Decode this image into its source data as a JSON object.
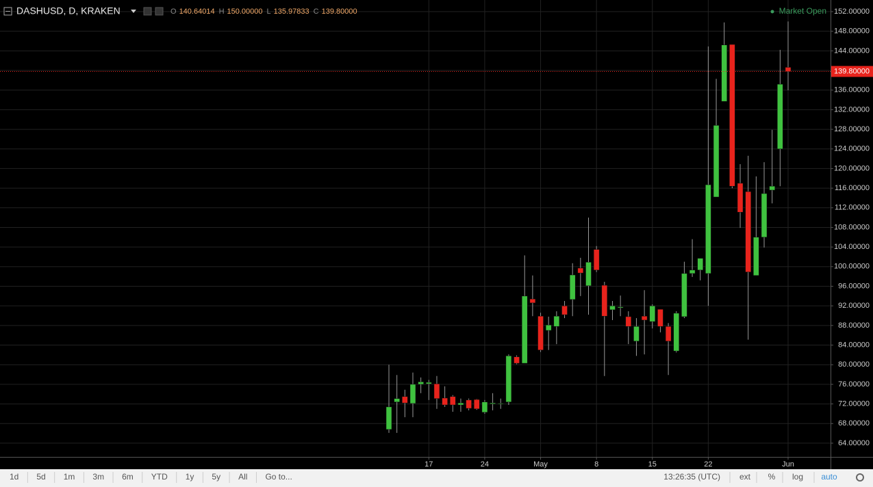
{
  "header": {
    "symbol": "DASHUSD, D, KRAKEN",
    "ohlc": [
      {
        "key": "O",
        "value": "140.64014"
      },
      {
        "key": "H",
        "value": "150.00000"
      },
      {
        "key": "L",
        "value": "135.97833"
      },
      {
        "key": "C",
        "value": "139.80000"
      }
    ],
    "status": "Market Open"
  },
  "toolbar": {
    "ranges": [
      "1d",
      "5d",
      "1m",
      "3m",
      "6m",
      "YTD",
      "1y",
      "5y",
      "All"
    ],
    "goto": "Go to...",
    "time": "13:26:35 (UTC)",
    "options": [
      "ext",
      "%",
      "log",
      "auto"
    ]
  },
  "chart_data": {
    "type": "candlestick",
    "categories": [
      null,
      null,
      null,
      null,
      null,
      "17",
      null,
      null,
      null,
      null,
      null,
      null,
      "24",
      null,
      null,
      null,
      null,
      null,
      null,
      "May",
      null,
      null,
      null,
      null,
      null,
      null,
      "8",
      null,
      null,
      null,
      null,
      null,
      null,
      "15",
      null,
      null,
      null,
      null,
      null,
      null,
      "22",
      null,
      null,
      null,
      null,
      null,
      null,
      null,
      null,
      null,
      "Jun"
    ],
    "open": [
      66.8,
      72.4,
      73.5,
      72.1,
      76.0,
      76.1,
      76.1,
      73.2,
      73.5,
      71.8,
      72.8,
      72.9,
      70.3,
      72.0,
      72.0,
      72.4,
      81.6,
      80.3,
      93.4,
      89.9,
      87.0,
      87.8,
      92.0,
      93.3,
      99.7,
      96.1,
      103.5,
      96.2,
      91.2,
      91.6,
      89.8,
      84.8,
      89.9,
      88.8,
      91.3,
      87.8,
      82.8,
      89.8,
      98.6,
      99.3,
      98.6,
      114.2,
      133.7,
      145.3,
      117.0,
      115.3,
      98.2,
      106.0,
      115.6,
      124.0,
      140.64014
    ],
    "high": [
      80.0,
      77.9,
      74.9,
      78.4,
      77.4,
      76.9,
      77.7,
      75.6,
      73.8,
      73.1,
      73.1,
      73.0,
      72.8,
      74.2,
      73.1,
      82.1,
      81.9,
      102.3,
      98.2,
      90.6,
      89.8,
      90.9,
      93.0,
      100.7,
      101.8,
      110.0,
      104.2,
      96.9,
      93.0,
      94.1,
      90.9,
      89.5,
      95.2,
      92.3,
      91.3,
      88.5,
      90.9,
      101.0,
      105.6,
      101.7,
      144.9,
      138.3,
      149.8,
      145.3,
      120.9,
      122.6,
      118.4,
      121.3,
      127.9,
      144.2,
      150.0
    ],
    "low": [
      66.1,
      66.1,
      69.3,
      69.3,
      74.2,
      72.8,
      71.0,
      71.4,
      70.4,
      70.4,
      70.7,
      70.8,
      70.0,
      70.7,
      71.0,
      71.8,
      80.1,
      80.3,
      89.9,
      82.6,
      83.0,
      84.2,
      89.5,
      89.9,
      94.0,
      90.2,
      98.9,
      77.7,
      89.1,
      89.9,
      84.2,
      81.8,
      82.1,
      87.4,
      86.6,
      77.9,
      82.5,
      89.5,
      97.9,
      97.2,
      92.0,
      114.2,
      133.7,
      116.0,
      107.9,
      85.1,
      98.2,
      103.9,
      112.9,
      116.4,
      135.97833
    ],
    "close": [
      71.4,
      73.1,
      72.2,
      76.0,
      76.5,
      76.4,
      73.1,
      71.8,
      71.8,
      72.2,
      71.1,
      71.0,
      72.4,
      72.2,
      72.1,
      81.8,
      80.3,
      94.0,
      92.6,
      83.0,
      88.1,
      89.9,
      90.2,
      98.3,
      98.7,
      100.9,
      99.3,
      89.9,
      92.0,
      91.8,
      87.8,
      87.8,
      89.1,
      92.0,
      87.8,
      84.8,
      90.5,
      98.6,
      99.3,
      101.7,
      116.7,
      128.8,
      145.2,
      116.4,
      111.1,
      98.9,
      106.0,
      114.9,
      116.4,
      137.2,
      139.8
    ],
    "up_color": "#3fc23f",
    "down_color": "#e8231c",
    "ylim": [
      61.2,
      154.37
    ],
    "yticks": [
      {
        "value": 64,
        "label": "64.00000"
      },
      {
        "value": 68,
        "label": "68.00000"
      },
      {
        "value": 72,
        "label": "72.00000"
      },
      {
        "value": 76,
        "label": "76.00000"
      },
      {
        "value": 80,
        "label": "80.00000"
      },
      {
        "value": 84,
        "label": "84.00000"
      },
      {
        "value": 88,
        "label": "88.00000"
      },
      {
        "value": 92,
        "label": "92.00000"
      },
      {
        "value": 96,
        "label": "96.00000"
      },
      {
        "value": 100,
        "label": "100.00000"
      },
      {
        "value": 104,
        "label": "104.00000"
      },
      {
        "value": 108,
        "label": "108.00000"
      },
      {
        "value": 112,
        "label": "112.00000"
      },
      {
        "value": 116,
        "label": "116.00000"
      },
      {
        "value": 120,
        "label": "120.00000"
      },
      {
        "value": 124,
        "label": "124.00000"
      },
      {
        "value": 128,
        "label": "128.00000"
      },
      {
        "value": 132,
        "label": "132.00000"
      },
      {
        "value": 136,
        "label": "136.00000"
      },
      {
        "value": 140,
        "label": "140.00000"
      },
      {
        "value": 144,
        "label": "144.00000"
      },
      {
        "value": 148,
        "label": "148.00000"
      },
      {
        "value": 152,
        "label": "152.00000"
      }
    ],
    "last_price": {
      "value": 139.8,
      "label": "139.80000"
    },
    "grid": true
  }
}
